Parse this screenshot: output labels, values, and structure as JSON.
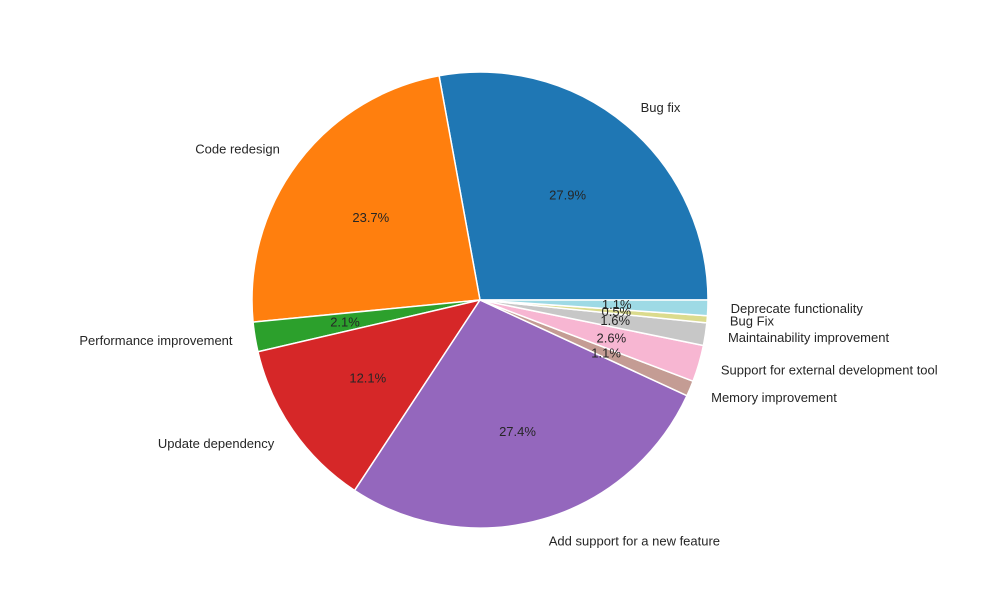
{
  "chart_data": {
    "type": "pie",
    "title": "",
    "start_angle_deg": 0,
    "direction": "counterclockwise",
    "slices": [
      {
        "label": "Bug fix",
        "value": 27.9,
        "pct_label": "27.9%",
        "color": "#1f77b4"
      },
      {
        "label": "Code redesign",
        "value": 23.7,
        "pct_label": "23.7%",
        "color": "#ff7f0e"
      },
      {
        "label": "Performance improvement",
        "value": 2.1,
        "pct_label": "2.1%",
        "color": "#2ca02c"
      },
      {
        "label": "Update dependency",
        "value": 12.1,
        "pct_label": "12.1%",
        "color": "#d62728"
      },
      {
        "label": "Add support for a new feature",
        "value": 27.4,
        "pct_label": "27.4%",
        "color": "#9467bd"
      },
      {
        "label": "Memory improvement",
        "value": 1.1,
        "pct_label": "1.1%",
        "color": "#c49c94"
      },
      {
        "label": "Support for external development tool",
        "value": 2.6,
        "pct_label": "2.6%",
        "color": "#f7b6d2"
      },
      {
        "label": "Maintainability improvement",
        "value": 1.6,
        "pct_label": "1.6%",
        "color": "#c7c7c7"
      },
      {
        "label": "Bug Fix",
        "value": 0.5,
        "pct_label": "0.5%",
        "color": "#dbdb8d"
      },
      {
        "label": "Deprecate functionality",
        "value": 1.1,
        "pct_label": "1.1%",
        "color": "#9edae5"
      }
    ]
  }
}
